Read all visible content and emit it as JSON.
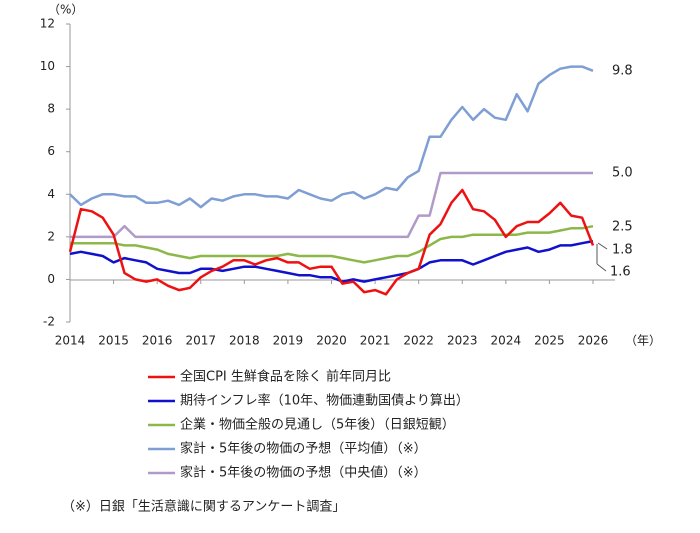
{
  "chart_data": {
    "type": "line",
    "y_unit": "（%）",
    "x_unit": "（年）",
    "x": [
      2014,
      2014.25,
      2014.5,
      2014.75,
      2015,
      2015.25,
      2015.5,
      2015.75,
      2016,
      2016.25,
      2016.5,
      2016.75,
      2017,
      2017.25,
      2017.5,
      2017.75,
      2018,
      2018.25,
      2018.5,
      2018.75,
      2019,
      2019.25,
      2019.5,
      2019.75,
      2020,
      2020.25,
      2020.5,
      2020.75,
      2021,
      2021.25,
      2021.5,
      2021.75,
      2022,
      2022.25,
      2022.5,
      2022.75,
      2023,
      2023.25,
      2023.5,
      2023.75,
      2024,
      2024.25,
      2024.5,
      2024.75,
      2025,
      2025.25,
      2025.5,
      2025.75,
      2026
    ],
    "xlim": [
      2014,
      2026
    ],
    "xticks": [
      2014,
      2015,
      2016,
      2017,
      2018,
      2019,
      2020,
      2021,
      2022,
      2023,
      2024,
      2025,
      2026
    ],
    "ylim": [
      -2,
      12
    ],
    "yticks": [
      12,
      10,
      8,
      6,
      4,
      2,
      0,
      -2
    ],
    "series": [
      {
        "name": "全国CPI 生鮮食品を除く 前年同月比",
        "color": "#ee1111",
        "end_label": "1.6",
        "values": [
          1.3,
          3.3,
          3.2,
          2.9,
          2.1,
          0.3,
          0.0,
          -0.1,
          0.0,
          -0.3,
          -0.5,
          -0.4,
          0.1,
          0.4,
          0.6,
          0.9,
          0.9,
          0.7,
          0.9,
          1.0,
          0.8,
          0.8,
          0.5,
          0.6,
          0.6,
          -0.2,
          -0.1,
          -0.6,
          -0.5,
          -0.7,
          0.0,
          0.3,
          0.5,
          2.1,
          2.6,
          3.6,
          4.2,
          3.3,
          3.2,
          2.8,
          2.0,
          2.5,
          2.7,
          2.7,
          3.1,
          3.6,
          3.0,
          2.9,
          1.6
        ]
      },
      {
        "name": "期待インフレ率（10年、物価連動国債より算出）",
        "color": "#1111cc",
        "end_label": "1.8",
        "values": [
          1.2,
          1.3,
          1.2,
          1.1,
          0.8,
          1.0,
          0.9,
          0.8,
          0.5,
          0.4,
          0.3,
          0.3,
          0.5,
          0.5,
          0.4,
          0.5,
          0.6,
          0.6,
          0.5,
          0.4,
          0.3,
          0.2,
          0.2,
          0.1,
          0.1,
          -0.1,
          0.0,
          -0.1,
          0.0,
          0.1,
          0.2,
          0.3,
          0.5,
          0.8,
          0.9,
          0.9,
          0.9,
          0.7,
          0.9,
          1.1,
          1.3,
          1.4,
          1.5,
          1.3,
          1.4,
          1.6,
          1.6,
          1.7,
          1.8
        ]
      },
      {
        "name": "企業・物価全般の見通し（5年後）（日銀短観）",
        "color": "#8cb84a",
        "end_label": "2.5",
        "values": [
          1.7,
          1.7,
          1.7,
          1.7,
          1.7,
          1.6,
          1.6,
          1.5,
          1.4,
          1.2,
          1.1,
          1.0,
          1.1,
          1.1,
          1.1,
          1.1,
          1.1,
          1.1,
          1.1,
          1.1,
          1.2,
          1.1,
          1.1,
          1.1,
          1.1,
          1.0,
          0.9,
          0.8,
          0.9,
          1.0,
          1.1,
          1.1,
          1.3,
          1.6,
          1.9,
          2.0,
          2.0,
          2.1,
          2.1,
          2.1,
          2.1,
          2.1,
          2.2,
          2.2,
          2.2,
          2.3,
          2.4,
          2.4,
          2.5
        ]
      },
      {
        "name": "家計・5年後の物価の予想（平均値）（※）",
        "color": "#7f9fd4",
        "end_label": "9.8",
        "values": [
          4.0,
          3.5,
          3.8,
          4.0,
          4.0,
          3.9,
          3.9,
          3.6,
          3.6,
          3.7,
          3.5,
          3.8,
          3.4,
          3.8,
          3.7,
          3.9,
          4.0,
          4.0,
          3.9,
          3.9,
          3.8,
          4.2,
          4.0,
          3.8,
          3.7,
          4.0,
          4.1,
          3.8,
          4.0,
          4.3,
          4.2,
          4.8,
          5.1,
          6.7,
          6.7,
          7.5,
          8.1,
          7.5,
          8.0,
          7.6,
          7.5,
          8.7,
          7.9,
          9.2,
          9.6,
          9.9,
          10.0,
          10.0,
          9.8
        ]
      },
      {
        "name": "家計・5年後の物価の予想（中央値）（※）",
        "color": "#b09ac8",
        "end_label": "5.0",
        "values": [
          2,
          2,
          2,
          2,
          2,
          2.5,
          2,
          2,
          2,
          2,
          2,
          2,
          2,
          2,
          2,
          2,
          2,
          2,
          2,
          2,
          2,
          2,
          2,
          2,
          2,
          2,
          2,
          2,
          2,
          2,
          2,
          2,
          3,
          3,
          5,
          5,
          5,
          5,
          5,
          5,
          5,
          5,
          5,
          5,
          5,
          5,
          5,
          5,
          5
        ]
      }
    ],
    "footnote": "（※）日銀「生活意識に関するアンケート調査」"
  }
}
